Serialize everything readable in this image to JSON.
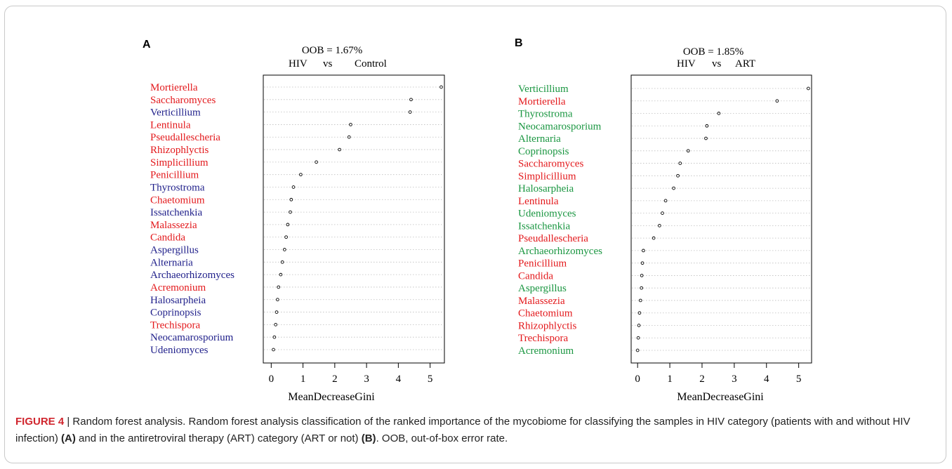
{
  "colors": {
    "hiv": "#e3191c",
    "control": "#1f1f8a",
    "art": "#1a9641"
  },
  "chart_data": [
    {
      "type": "scatter",
      "panel": "A",
      "oob": "OOB = 1.67%",
      "comparison": {
        "group1": "HIV",
        "vs": "vs",
        "group2": "Control"
      },
      "xlabel": "MeanDecreaseGini",
      "xlim": [
        -0.25,
        5.45
      ],
      "xticks": [
        0,
        1,
        2,
        3,
        4,
        5
      ],
      "grid": "dotted horizontal",
      "items": [
        {
          "label": "Mortierella",
          "value": 5.35,
          "group": "hiv"
        },
        {
          "label": "Saccharomyces",
          "value": 4.4,
          "group": "hiv"
        },
        {
          "label": "Verticillium",
          "value": 4.37,
          "group": "control"
        },
        {
          "label": "Lentinula",
          "value": 2.5,
          "group": "hiv"
        },
        {
          "label": "Pseudallescheria",
          "value": 2.45,
          "group": "hiv"
        },
        {
          "label": "Rhizophlyctis",
          "value": 2.15,
          "group": "hiv"
        },
        {
          "label": "Simplicillium",
          "value": 1.42,
          "group": "hiv"
        },
        {
          "label": "Penicillium",
          "value": 0.93,
          "group": "hiv"
        },
        {
          "label": "Thyrostroma",
          "value": 0.7,
          "group": "control"
        },
        {
          "label": "Chaetomium",
          "value": 0.63,
          "group": "hiv"
        },
        {
          "label": "Issatchenkia",
          "value": 0.6,
          "group": "control"
        },
        {
          "label": "Malassezia",
          "value": 0.52,
          "group": "hiv"
        },
        {
          "label": "Candida",
          "value": 0.47,
          "group": "hiv"
        },
        {
          "label": "Aspergillus",
          "value": 0.42,
          "group": "control"
        },
        {
          "label": "Alternaria",
          "value": 0.35,
          "group": "control"
        },
        {
          "label": "Archaeorhizomyces",
          "value": 0.3,
          "group": "control"
        },
        {
          "label": "Acremonium",
          "value": 0.23,
          "group": "hiv"
        },
        {
          "label": "Halosarpheia",
          "value": 0.2,
          "group": "control"
        },
        {
          "label": "Coprinopsis",
          "value": 0.17,
          "group": "control"
        },
        {
          "label": "Trechispora",
          "value": 0.14,
          "group": "hiv"
        },
        {
          "label": "Neocamarosporium",
          "value": 0.1,
          "group": "control"
        },
        {
          "label": "Udeniomyces",
          "value": 0.07,
          "group": "control"
        }
      ]
    },
    {
      "type": "scatter",
      "panel": "B",
      "oob": "OOB = 1.85%",
      "comparison": {
        "group1": "HIV",
        "vs": "vs",
        "group2": "ART"
      },
      "xlabel": "MeanDecreaseGini",
      "xlim": [
        -0.2,
        5.4
      ],
      "xticks": [
        0,
        1,
        2,
        3,
        4,
        5
      ],
      "grid": "dotted horizontal",
      "items": [
        {
          "label": "Verticillium",
          "value": 5.3,
          "group": "art"
        },
        {
          "label": "Mortierella",
          "value": 4.33,
          "group": "hiv"
        },
        {
          "label": "Thyrostroma",
          "value": 2.52,
          "group": "art"
        },
        {
          "label": "Neocamarosporium",
          "value": 2.15,
          "group": "art"
        },
        {
          "label": "Alternaria",
          "value": 2.12,
          "group": "art"
        },
        {
          "label": "Coprinopsis",
          "value": 1.57,
          "group": "art"
        },
        {
          "label": "Saccharomyces",
          "value": 1.32,
          "group": "hiv"
        },
        {
          "label": "Simplicillium",
          "value": 1.25,
          "group": "hiv"
        },
        {
          "label": "Halosarpheia",
          "value": 1.12,
          "group": "art"
        },
        {
          "label": "Lentinula",
          "value": 0.87,
          "group": "hiv"
        },
        {
          "label": "Udeniomyces",
          "value": 0.77,
          "group": "art"
        },
        {
          "label": "Issatchenkia",
          "value": 0.68,
          "group": "art"
        },
        {
          "label": "Pseudallescheria",
          "value": 0.5,
          "group": "hiv"
        },
        {
          "label": "Archaeorhizomyces",
          "value": 0.18,
          "group": "art"
        },
        {
          "label": "Penicillium",
          "value": 0.15,
          "group": "hiv"
        },
        {
          "label": "Candida",
          "value": 0.13,
          "group": "hiv"
        },
        {
          "label": "Aspergillus",
          "value": 0.12,
          "group": "art"
        },
        {
          "label": "Malassezia",
          "value": 0.09,
          "group": "hiv"
        },
        {
          "label": "Chaetomium",
          "value": 0.06,
          "group": "hiv"
        },
        {
          "label": "Rhizophlyctis",
          "value": 0.04,
          "group": "hiv"
        },
        {
          "label": "Trechispora",
          "value": 0.02,
          "group": "hiv"
        },
        {
          "label": "Acremonium",
          "value": 0.0,
          "group": "art"
        }
      ]
    }
  ],
  "caption": {
    "figure_label": "FIGURE 4",
    "separator": " | ",
    "text_1": "Random forest analysis. Random forest analysis classification of the ranked importance of the mycobiome for classifying the samples in HIV category (patients with and without HIV infection) ",
    "ref_a": "(A)",
    "text_2": " and in the antiretroviral therapy (ART) category (ART or not) ",
    "ref_b": "(B)",
    "text_3": ". OOB, out-of-box error rate."
  }
}
